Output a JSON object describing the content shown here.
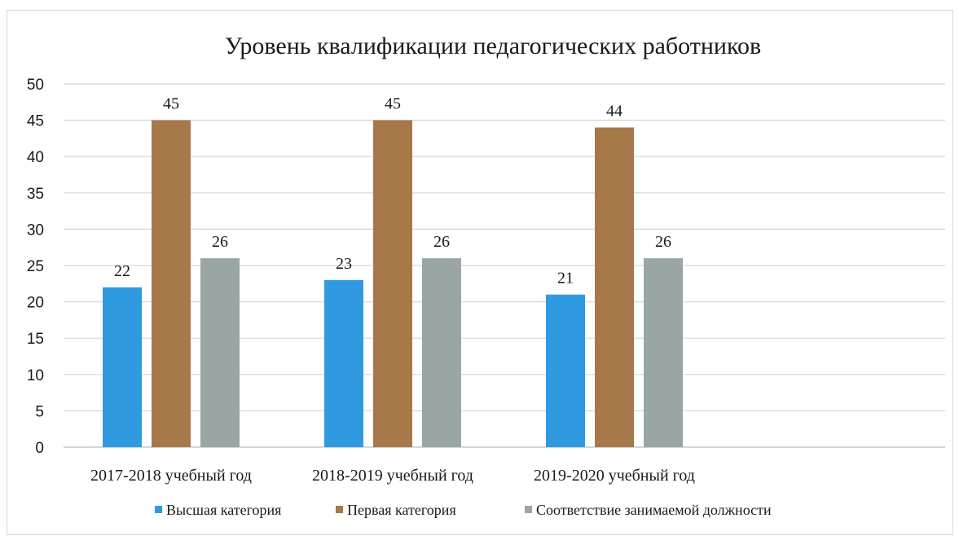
{
  "chart_data": {
    "type": "bar",
    "title": "Уровень квалификации педагогических работников",
    "categories": [
      "2017-2018 учебный год",
      "2018-2019 учебный год",
      "2019-2020 учебный год"
    ],
    "series": [
      {
        "name": "Высшая категория",
        "values": [
          22,
          23,
          21
        ],
        "labels": [
          "22",
          "23",
          "21"
        ],
        "color": "#2f9ae0"
      },
      {
        "name": "Первая категория",
        "values": [
          45,
          45,
          44
        ],
        "labels": [
          "45",
          "45",
          "44"
        ],
        "color": "#a6784a"
      },
      {
        "name": "Соответствие занимаемой должности",
        "values": [
          26,
          26,
          26
        ],
        "labels": [
          "26",
          "26",
          "26"
        ],
        "color": "#9aa6a6"
      }
    ],
    "ylim": [
      0,
      50
    ],
    "yticks": [
      "0",
      "5",
      "10",
      "15",
      "20",
      "25",
      "30",
      "35",
      "40",
      "45",
      "50"
    ],
    "grid": true,
    "legend": "bottom"
  }
}
